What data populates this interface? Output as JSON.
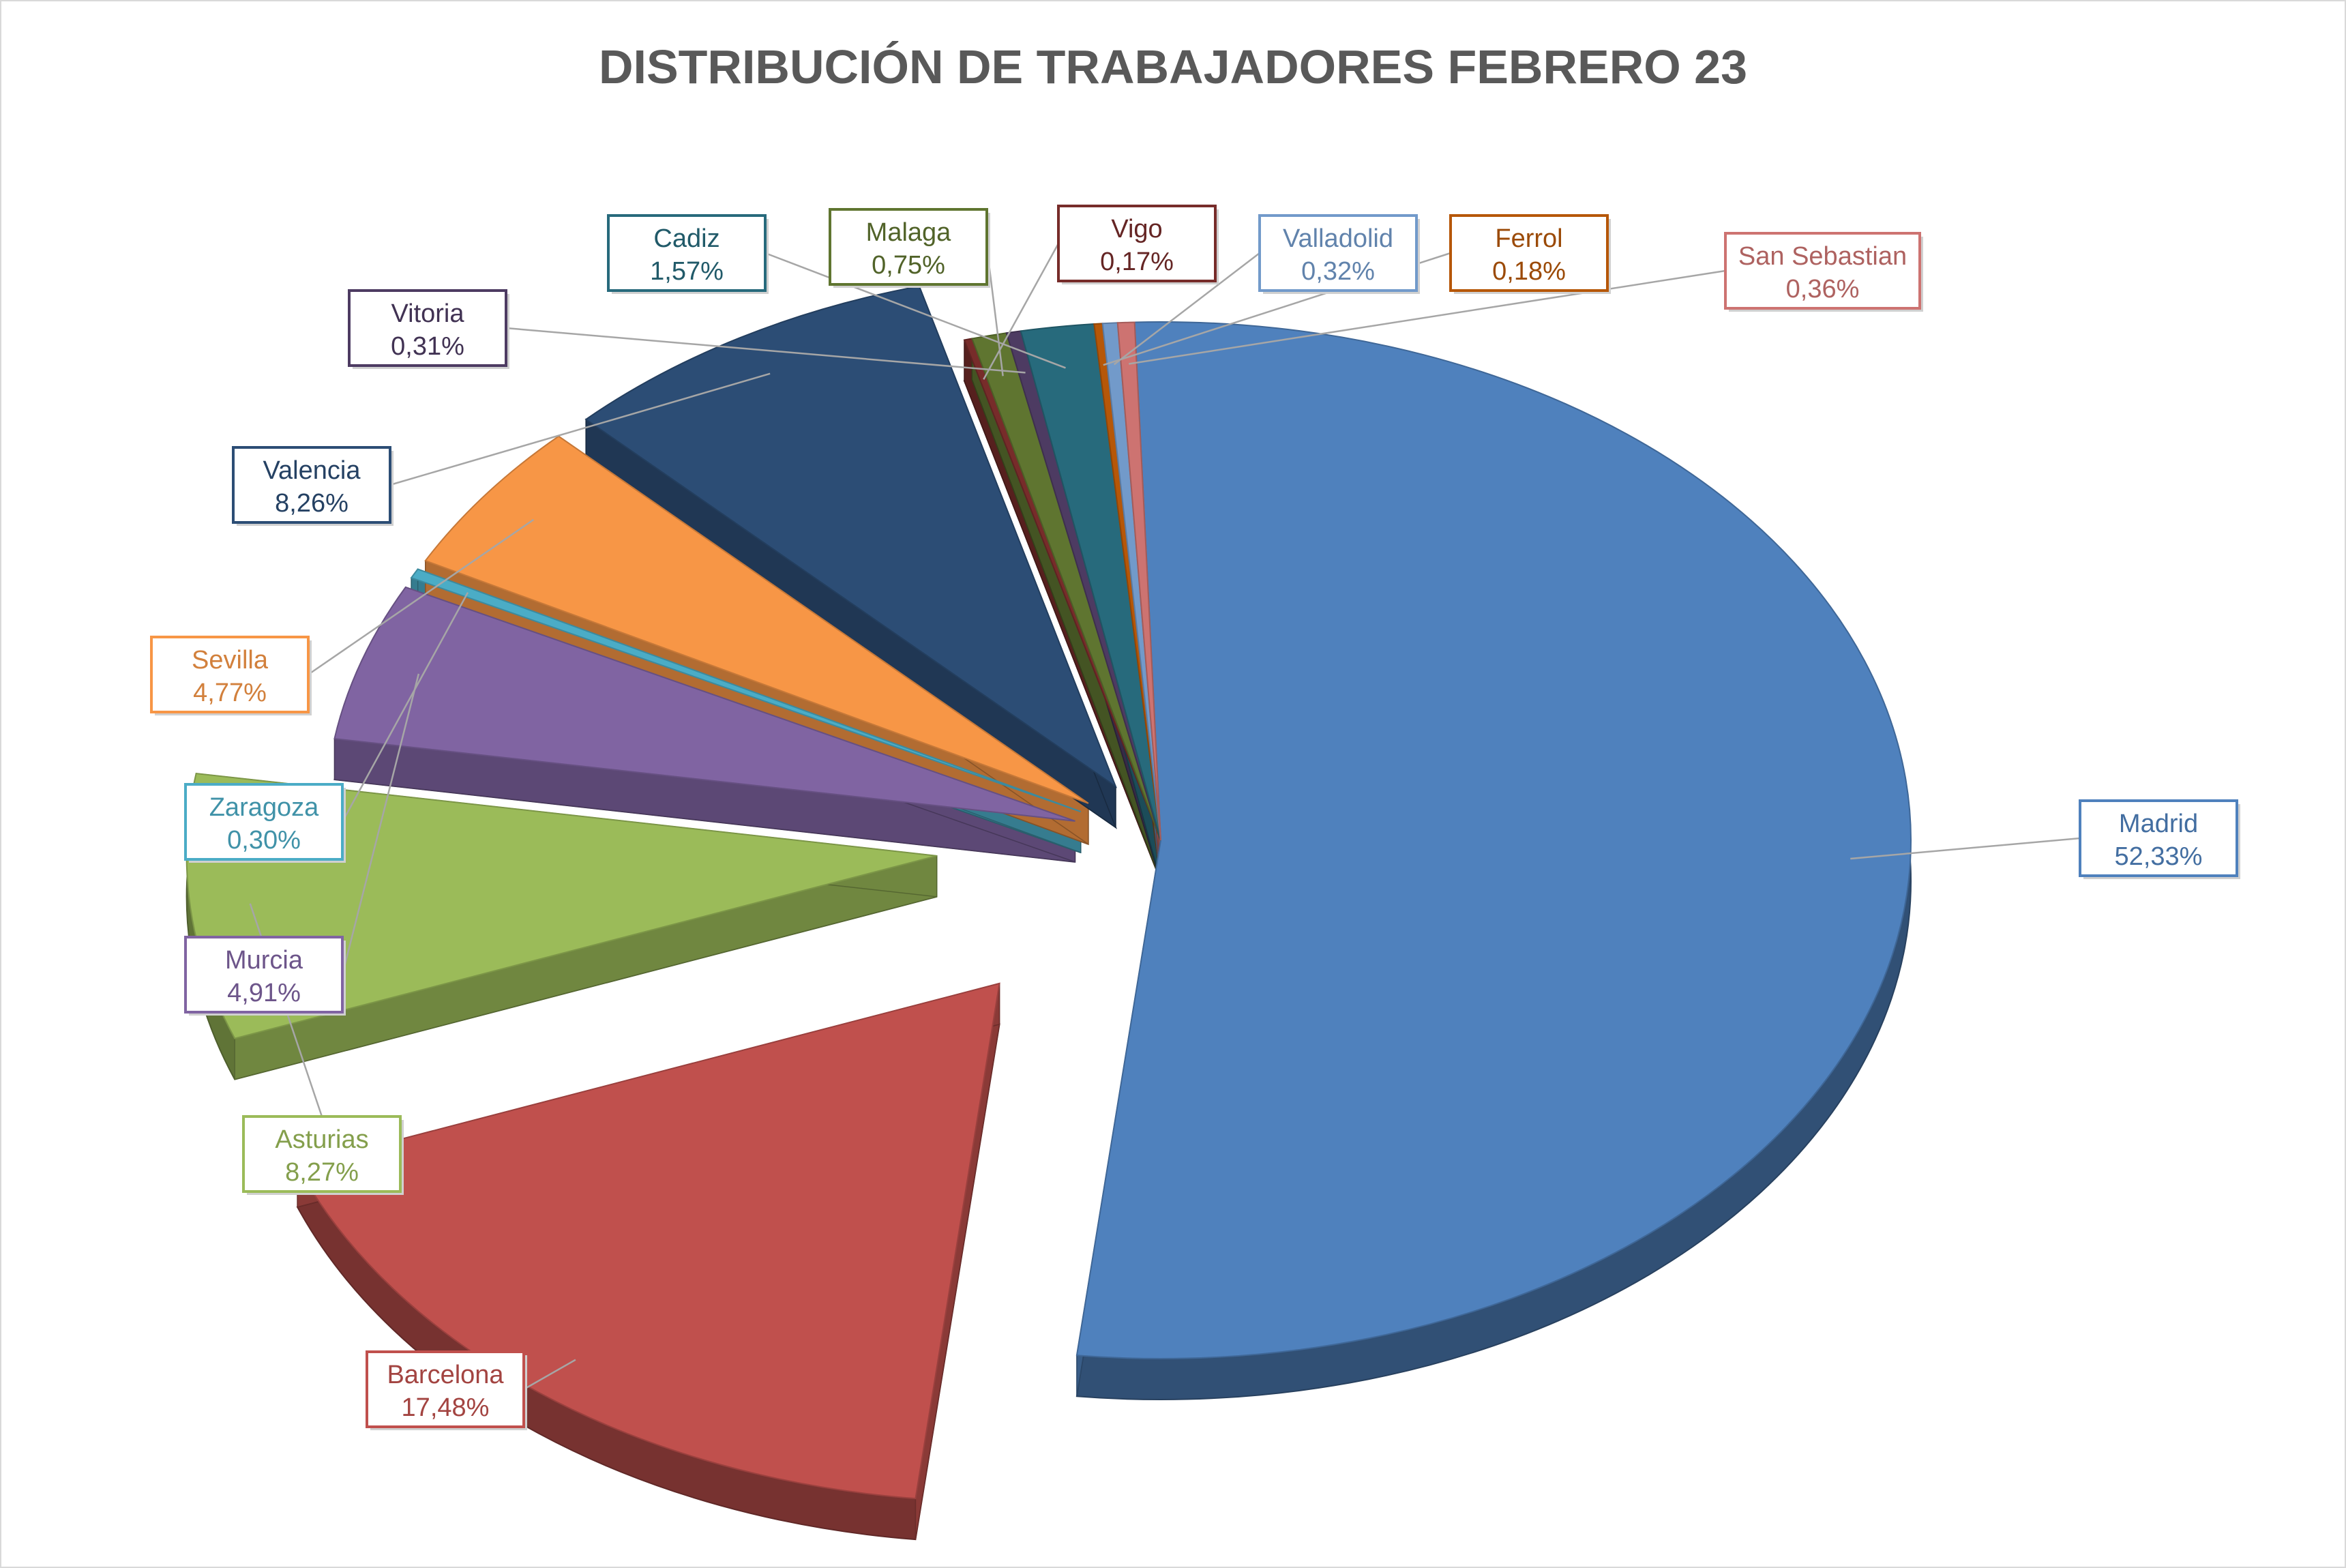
{
  "chart_data": {
    "type": "pie",
    "title": "DISTRIBUCIÓN DE TRABAJADORES FEBRERO 23",
    "unit": "%",
    "slices": [
      {
        "label": "Madrid",
        "value": 52.33,
        "value_text": "52,33%",
        "color": "#4f81bd",
        "explode": 0.0
      },
      {
        "label": "Barcelona",
        "value": 17.48,
        "value_text": "17,48%",
        "color": "#c0504d",
        "explode": 0.35
      },
      {
        "label": "Asturias",
        "value": 8.27,
        "value_text": "8,27%",
        "color": "#9bbb59",
        "explode": 0.3
      },
      {
        "label": "Murcia",
        "value": 4.91,
        "value_text": "4,91%",
        "color": "#8064a2",
        "explode": 0.12
      },
      {
        "label": "Zaragoza",
        "value": 0.3,
        "value_text": "0,30%",
        "color": "#4bacc6",
        "explode": 0.12
      },
      {
        "label": "Sevilla",
        "value": 4.77,
        "value_text": "4,77%",
        "color": "#f79646",
        "explode": 0.12
      },
      {
        "label": "Valencia",
        "value": 8.26,
        "value_text": "8,26%",
        "color": "#2c4d75",
        "explode": 0.12
      },
      {
        "label": "Vigo",
        "value": 0.17,
        "value_text": "0,17%",
        "color": "#772c2a",
        "explode": 0.0
      },
      {
        "label": "Malaga",
        "value": 0.75,
        "value_text": "0,75%",
        "color": "#5f7530",
        "explode": 0.0
      },
      {
        "label": "Vitoria",
        "value": 0.31,
        "value_text": "0,31%",
        "color": "#4d3b62",
        "explode": 0.0
      },
      {
        "label": "Cadiz",
        "value": 1.57,
        "value_text": "1,57%",
        "color": "#276a7c",
        "explode": 0.0
      },
      {
        "label": "Ferrol",
        "value": 0.18,
        "value_text": "0,18%",
        "color": "#b65708",
        "explode": 0.0
      },
      {
        "label": "Valladolid",
        "value": 0.32,
        "value_text": "0,32%",
        "color": "#729aca",
        "explode": 0.0
      },
      {
        "label": "San Sebastian",
        "value": 0.36,
        "value_text": "0,36%",
        "color": "#cd7371",
        "explode": 0.0
      }
    ],
    "title_color": "#595959",
    "leader_line_color": "#a6a6a6"
  }
}
